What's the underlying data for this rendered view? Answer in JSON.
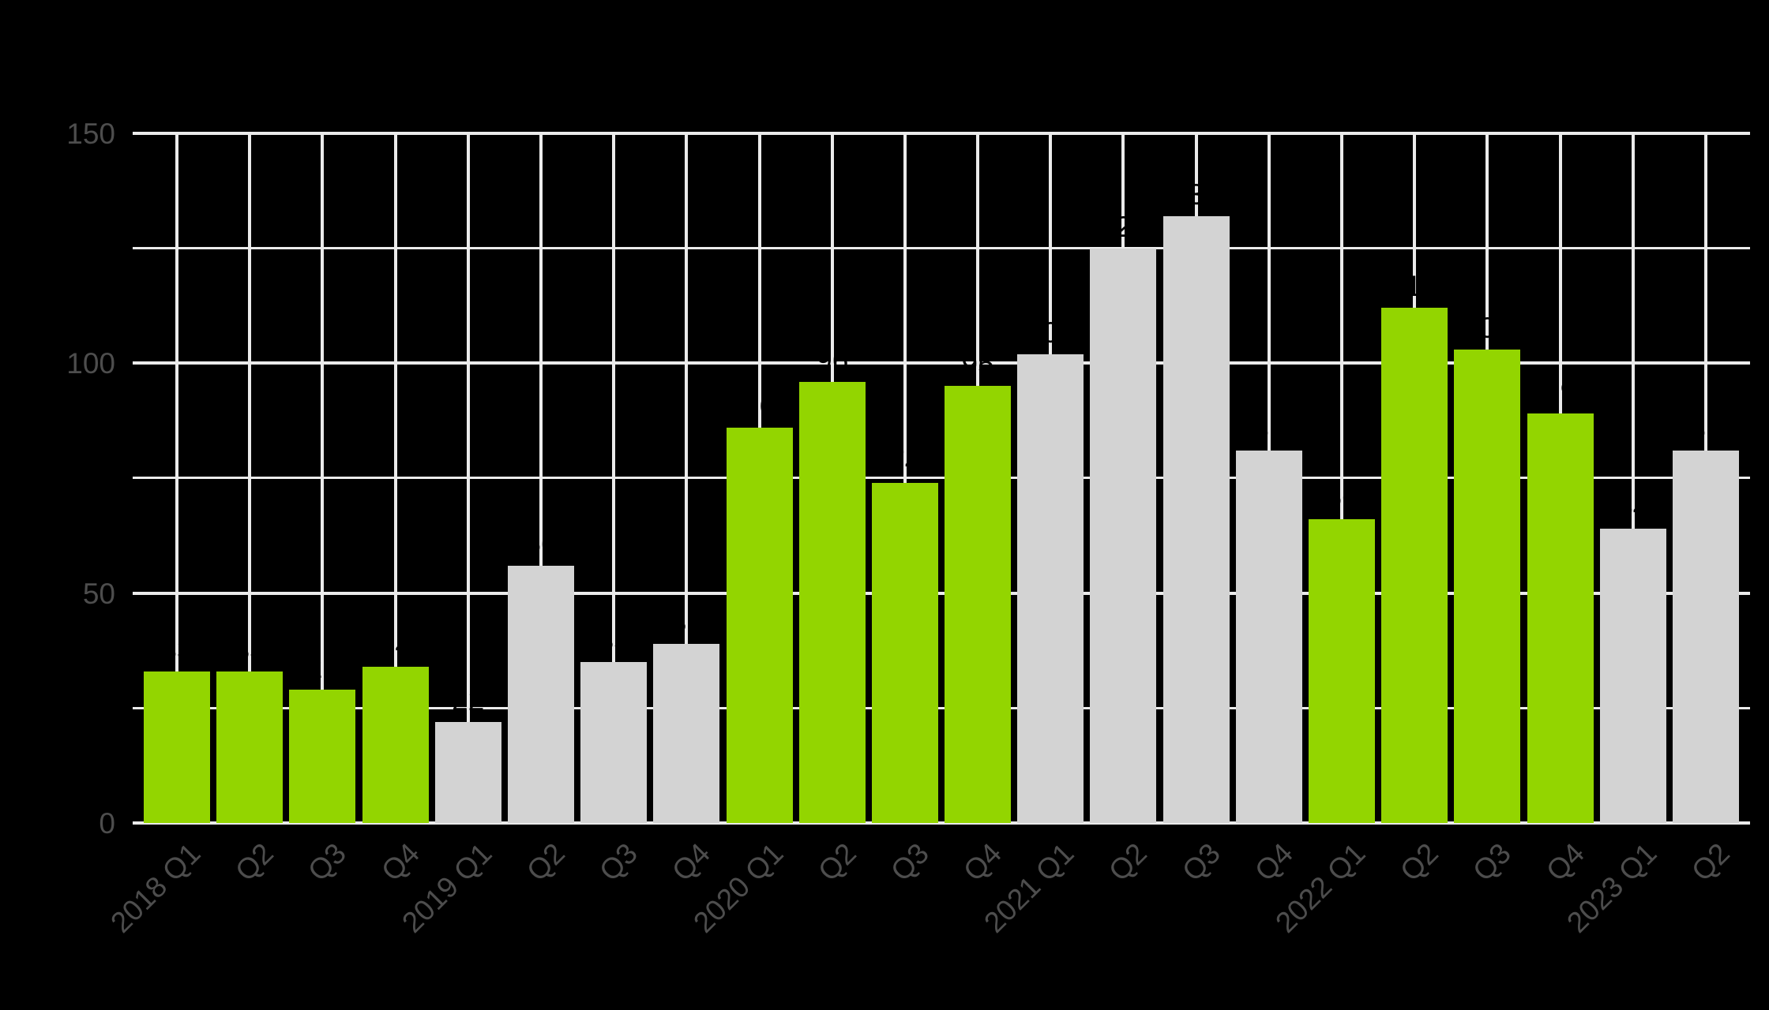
{
  "chart_data": {
    "type": "bar",
    "title": "",
    "xlabel": "",
    "ylabel": "",
    "ylim": [
      0,
      150
    ],
    "yticks": [
      0,
      50,
      100,
      150
    ],
    "minor_gridlines": [
      25,
      75,
      125
    ],
    "grid": true,
    "legend": "none",
    "background": "#000000",
    "colors": {
      "highlight": "#93D500",
      "default": "#D3D3D3",
      "grid": "#EBEBEB",
      "tick_text": "#4D4D4D",
      "data_label": "#000000"
    },
    "categories": [
      "2018 Q1",
      "Q2",
      "Q3",
      "Q4",
      "2019 Q1",
      "Q2",
      "Q3",
      "Q4",
      "2020 Q1",
      "Q2",
      "Q3",
      "Q4",
      "2021 Q1",
      "Q2",
      "Q3",
      "Q4",
      "2022 Q1",
      "Q2",
      "Q3",
      "Q4",
      "2023 Q1",
      "Q2"
    ],
    "values": [
      33,
      33,
      29,
      34,
      22,
      56,
      35,
      39,
      86,
      96,
      74,
      95,
      102,
      125,
      132,
      81,
      66,
      112,
      103,
      89,
      64,
      81
    ],
    "highlighted": [
      true,
      true,
      true,
      true,
      false,
      false,
      false,
      false,
      true,
      true,
      true,
      true,
      false,
      false,
      false,
      false,
      true,
      true,
      true,
      true,
      false,
      false
    ]
  }
}
